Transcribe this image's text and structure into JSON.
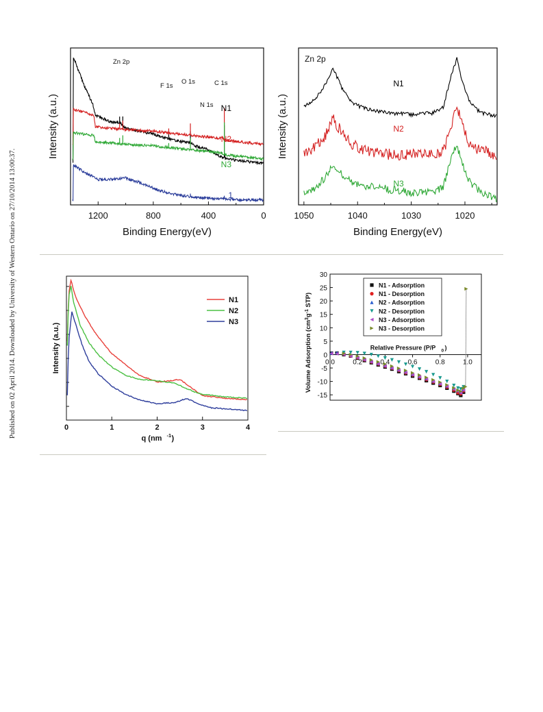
{
  "side_note": "Published on 02 April 2014. Downloaded by University of Western Ontario on 27/10/2014 13:00:37.",
  "chart_data": [
    {
      "type": "line",
      "xlabel": "Binding Energy(eV)",
      "ylabel": "Intensity (a.u.)",
      "xlim": [
        1400,
        0
      ],
      "xticks": [
        "1200",
        "800",
        "400",
        "0"
      ],
      "annotations": [
        "Zn 2p",
        "F 1s",
        "O 1s",
        "C 1s",
        "N 1s"
      ],
      "series": [
        {
          "name": "N1",
          "color": "#000000",
          "x": [
            1380,
            1300,
            1240,
            1220,
            1100,
            1040,
            1000,
            800,
            700,
            600,
            531,
            500,
            420,
            400,
            300,
            285,
            200,
            100,
            0
          ],
          "y": [
            100,
            80,
            68,
            60,
            55,
            55,
            51,
            47,
            44,
            42,
            41,
            39,
            37,
            36,
            31,
            31,
            29,
            28,
            27
          ]
        },
        {
          "name": "N2",
          "color": "#d42020",
          "x": [
            1380,
            1300,
            1230,
            1220,
            1000,
            800,
            700,
            600,
            500,
            400,
            300,
            285,
            200,
            100,
            0
          ],
          "y": [
            64,
            62,
            60,
            52,
            50,
            49,
            48,
            47,
            46,
            45,
            44,
            43,
            42,
            41,
            40
          ]
        },
        {
          "name": "N3",
          "color": "#2fa836",
          "x": [
            1380,
            1300,
            1230,
            1220,
            1000,
            800,
            700,
            600,
            500,
            400,
            300,
            285,
            200,
            100,
            0
          ],
          "y": [
            48,
            47,
            46,
            42,
            40,
            39,
            38,
            37,
            36,
            35,
            34,
            33,
            32,
            31,
            30
          ]
        },
        {
          "name": "1",
          "color": "#2a3c9a",
          "x": [
            1380,
            1300,
            1200,
            1100,
            1000,
            900,
            800,
            700,
            600,
            500,
            400,
            300,
            200,
            100,
            0
          ],
          "y": [
            26,
            21,
            16,
            16,
            17,
            14,
            10,
            7,
            5,
            4,
            3,
            3,
            2,
            2,
            2
          ]
        }
      ]
    },
    {
      "type": "line",
      "title": "Zn 2p",
      "xlabel": "Binding Energy(eV)",
      "ylabel": "Intensity (a.u.)",
      "xlim": [
        1051,
        1014
      ],
      "xticks": [
        "1050",
        "1040",
        "1030",
        "1020"
      ],
      "series": [
        {
          "name": "N1",
          "color": "#000000",
          "x": [
            1050,
            1048,
            1046,
            1044.5,
            1043,
            1041,
            1038,
            1034,
            1030,
            1026,
            1024,
            1022.5,
            1021.5,
            1020.5,
            1019,
            1017,
            1014
          ],
          "y": [
            30,
            32,
            37,
            42,
            36,
            31,
            29,
            28,
            27.5,
            28,
            30,
            40,
            45,
            38,
            31,
            28,
            27
          ]
        },
        {
          "name": "N2",
          "color": "#d42020",
          "x": [
            1050,
            1048,
            1046,
            1044.5,
            1043,
            1041,
            1038,
            1034,
            1030,
            1026,
            1024,
            1022.5,
            1021.5,
            1020.5,
            1019,
            1017,
            1014
          ],
          "y": [
            16,
            17,
            21,
            26,
            22,
            18,
            16,
            15,
            15,
            15,
            16,
            24,
            30,
            24,
            18,
            16,
            15
          ]
        },
        {
          "name": "N3",
          "color": "#2fa836",
          "x": [
            1050,
            1048,
            1046,
            1044.5,
            1043,
            1041,
            1038,
            1034,
            1030,
            1026,
            1024,
            1022.5,
            1021.5,
            1020.5,
            1019,
            1017,
            1014
          ],
          "y": [
            3,
            4,
            8,
            12,
            9,
            6,
            5,
            4,
            3,
            3,
            5,
            14,
            18,
            12,
            6,
            3,
            1
          ]
        }
      ]
    },
    {
      "type": "line",
      "xlabel": "q (nm",
      "xlabel_sup": "-1",
      "xlabel_end": ")",
      "ylabel": "Intensity (a.u.)",
      "xlim": [
        0,
        4
      ],
      "xticks": [
        "0",
        "1",
        "2",
        "3",
        "4"
      ],
      "legend": "top-right",
      "series": [
        {
          "name": "N1",
          "color": "#e8413b",
          "x": [
            0.02,
            0.05,
            0.1,
            0.2,
            0.4,
            0.6,
            0.8,
            1.0,
            1.3,
            1.6,
            2.0,
            2.3,
            2.5,
            2.7,
            3.0,
            3.5,
            4.0
          ],
          "y": [
            55,
            90,
            100,
            88,
            74,
            63,
            54,
            46,
            38,
            30,
            25,
            26,
            27,
            22,
            15,
            13,
            12
          ]
        },
        {
          "name": "N2",
          "color": "#4bc043",
          "x": [
            0.02,
            0.05,
            0.1,
            0.15,
            0.3,
            0.5,
            0.7,
            1.0,
            1.3,
            1.6,
            2.0,
            2.4,
            2.8,
            3.0,
            3.5,
            4.0
          ],
          "y": [
            52,
            88,
            96,
            85,
            67,
            54,
            45,
            36,
            30,
            27,
            26,
            24,
            18,
            16,
            14,
            13
          ]
        },
        {
          "name": "N3",
          "color": "#2e3e9c",
          "x": [
            0.02,
            0.05,
            0.12,
            0.2,
            0.35,
            0.5,
            0.7,
            1.0,
            1.3,
            1.6,
            2.0,
            2.4,
            2.65,
            2.9,
            3.2,
            3.6,
            4.0
          ],
          "y": [
            15,
            55,
            77,
            68,
            52,
            40,
            31,
            22,
            16,
            12,
            9,
            10,
            13,
            9,
            6,
            5,
            4
          ]
        }
      ]
    },
    {
      "type": "scatter",
      "xlabel": "Relative Pressure (P/P",
      "xlabel_sub": "0",
      "xlabel_end": ")",
      "ylabel": "Volume Adsorption (cm",
      "ylabel_sup1": "3",
      "ylabel_mid": "g",
      "ylabel_sup2": "-1",
      "ylabel_end": "STP)",
      "xlim": [
        0,
        1.1
      ],
      "ylim": [
        -17,
        30
      ],
      "xticks": [
        "0.0",
        "0.2",
        "0.4",
        "0.6",
        "0.8",
        "1.0"
      ],
      "yticks": [
        "30",
        "25",
        "20",
        "15",
        "10",
        "5",
        "0",
        "-5",
        "-10",
        "-15"
      ],
      "legend": "top-center",
      "series": [
        {
          "name": "N1 - Adsorption",
          "color": "#111111",
          "marker": "square",
          "x": [
            0.01,
            0.05,
            0.1,
            0.15,
            0.2,
            0.25,
            0.3,
            0.35,
            0.4,
            0.45,
            0.5,
            0.55,
            0.6,
            0.65,
            0.7,
            0.75,
            0.8,
            0.85,
            0.9,
            0.93,
            0.95,
            0.97
          ],
          "y": [
            0.5,
            0.5,
            0,
            -0.5,
            -1.3,
            -2.2,
            -3.0,
            -3.8,
            -4.6,
            -5.4,
            -6.3,
            -7.1,
            -8.0,
            -8.8,
            -9.7,
            -10.6,
            -11.5,
            -12.5,
            -13.6,
            -14.5,
            -15.2,
            -14.0
          ]
        },
        {
          "name": "N1 - Desorption",
          "color": "#e02020",
          "marker": "circle",
          "x": [
            0.97,
            0.95,
            0.93,
            0.9,
            0.85,
            0.8,
            0.75,
            0.7,
            0.65,
            0.6,
            0.55,
            0.5,
            0.45,
            0.4,
            0.35,
            0.3,
            0.25,
            0.2,
            0.15,
            0.1
          ],
          "y": [
            -13.5,
            -14.6,
            -14.2,
            -13.2,
            -12.1,
            -11.1,
            -10.2,
            -9.3,
            -8.5,
            -7.6,
            -6.8,
            -5.9,
            -5.1,
            -4.3,
            -3.5,
            -2.7,
            -1.9,
            -1.1,
            -0.4,
            0.2
          ]
        },
        {
          "name": "N2 - Adsorption",
          "color": "#2a5fd0",
          "marker": "triangle-up",
          "x": [
            0.01,
            0.05,
            0.1,
            0.15,
            0.2,
            0.25,
            0.3,
            0.35,
            0.4,
            0.45,
            0.5,
            0.55,
            0.6,
            0.65,
            0.7,
            0.75,
            0.8,
            0.85,
            0.9,
            0.93,
            0.95,
            0.97
          ],
          "y": [
            0.6,
            0.7,
            0.4,
            0,
            -0.8,
            -1.6,
            -2.4,
            -3.2,
            -4.0,
            -4.8,
            -5.6,
            -6.4,
            -7.3,
            -8.1,
            -8.9,
            -9.8,
            -10.7,
            -11.6,
            -12.6,
            -13.4,
            -14.0,
            -13.0
          ]
        },
        {
          "name": "N2 - Desorption",
          "color": "#1a9a8f",
          "marker": "triangle-down",
          "x": [
            0.97,
            0.95,
            0.93,
            0.9,
            0.85,
            0.8,
            0.75,
            0.7,
            0.65,
            0.6,
            0.55,
            0.5,
            0.45,
            0.4,
            0.35,
            0.3,
            0.25,
            0.2,
            0.15,
            0.1
          ],
          "y": [
            -12.0,
            -12.8,
            -12.5,
            -11.5,
            -10.0,
            -8.7,
            -7.5,
            -6.4,
            -5.4,
            -4.5,
            -3.6,
            -2.8,
            -2.0,
            -1.3,
            -0.6,
            0,
            0.4,
            0.7,
            0.8,
            0.8
          ]
        },
        {
          "name": "N3 - Adsorption",
          "color": "#b050c8",
          "marker": "triangle-left",
          "x": [
            0.01,
            0.05,
            0.1,
            0.15,
            0.2,
            0.25,
            0.3,
            0.35,
            0.4,
            0.45,
            0.5,
            0.55,
            0.6,
            0.65,
            0.7,
            0.75,
            0.8,
            0.85,
            0.9,
            0.93,
            0.95,
            0.97
          ],
          "y": [
            0.4,
            0.3,
            0,
            -0.6,
            -1.2,
            -2.0,
            -2.8,
            -3.5,
            -4.3,
            -5.1,
            -5.9,
            -6.7,
            -7.5,
            -8.3,
            -9.1,
            -10.0,
            -10.9,
            -11.8,
            -12.9,
            -13.7,
            -14.3,
            -13.2
          ]
        },
        {
          "name": "N3 - Desorption",
          "color": "#7a8a2a",
          "marker": "triangle-right",
          "x": [
            0.97,
            0.95,
            0.93,
            0.9,
            0.85,
            0.8,
            0.75,
            0.7,
            0.65,
            0.6,
            0.55,
            0.5,
            0.45,
            0.4,
            0.35,
            0.3,
            0.25,
            0.2,
            0.15,
            0.1,
            0.985,
            0.99
          ],
          "y": [
            -12.6,
            -13.7,
            -13.3,
            -12.4,
            -11.3,
            -10.3,
            -9.4,
            -8.5,
            -7.6,
            -6.8,
            -5.9,
            -5.1,
            -4.3,
            -3.5,
            -2.7,
            -2.0,
            -1.3,
            -0.6,
            0,
            0.4,
            -12.0,
            24.5
          ]
        }
      ]
    }
  ]
}
